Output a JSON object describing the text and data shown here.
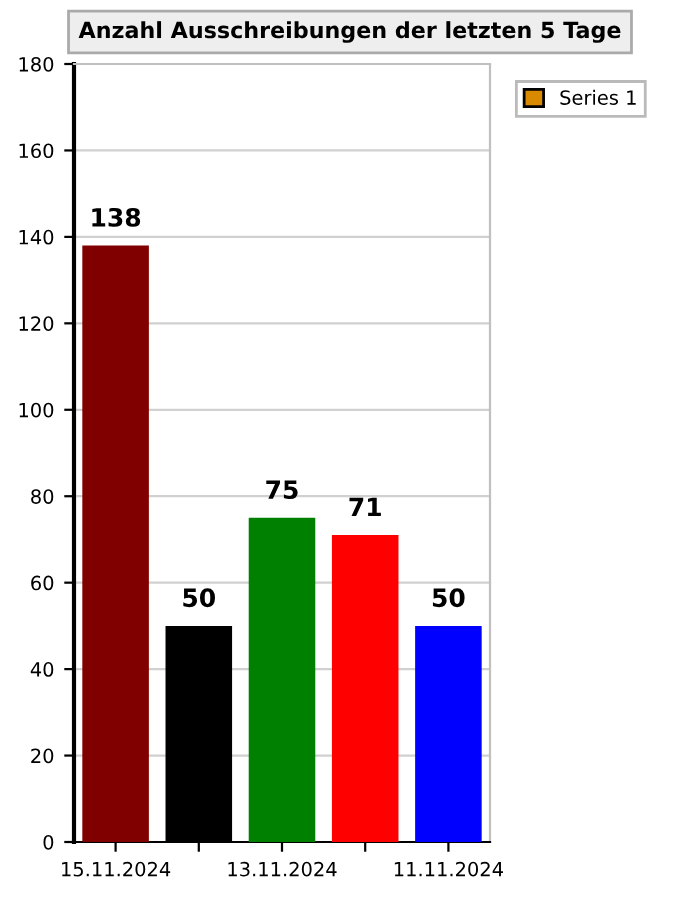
{
  "chart_data": {
    "type": "bar",
    "title": "Anzahl Ausschreibungen der letzten 5 Tage",
    "categories": [
      "15.11.2024",
      null,
      "13.11.2024",
      null,
      "11.11.2024"
    ],
    "series": [
      {
        "name": "Series 1",
        "color": "#d98a00",
        "colors": [
          "#800000",
          "#000000",
          "#008000",
          "#ff0000",
          "#0000ff"
        ],
        "values": [
          138,
          50,
          75,
          71,
          50
        ]
      }
    ],
    "ylim": [
      0,
      180
    ],
    "yticks": [
      0,
      20,
      40,
      60,
      80,
      100,
      120,
      140,
      160,
      180
    ],
    "grid": "y",
    "legend": "top right",
    "data_labels": true
  }
}
